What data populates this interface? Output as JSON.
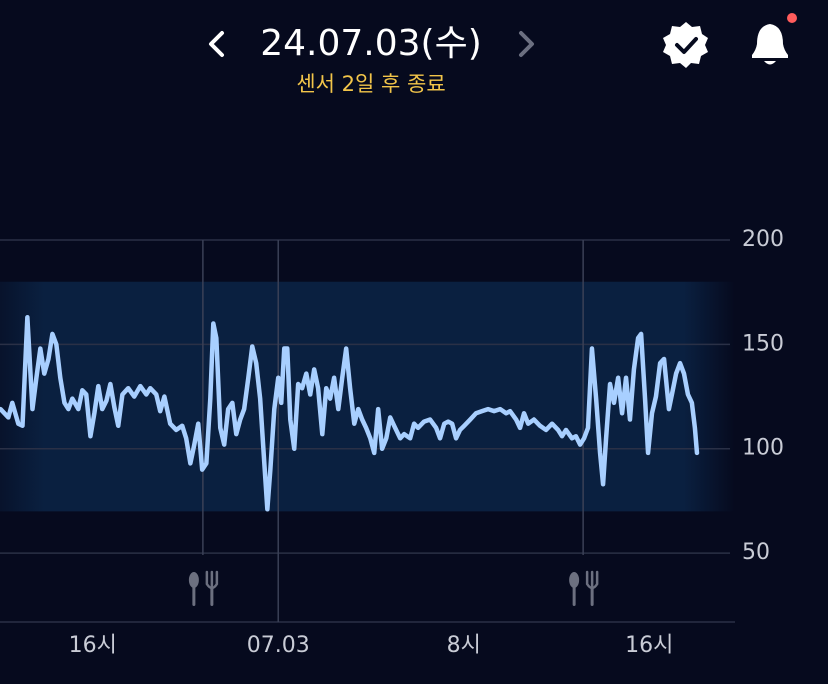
{
  "header": {
    "date": "24.07.03(수)",
    "sensor_note": "센서 2일 후 종료"
  },
  "chart_data": {
    "type": "line",
    "x": [
      -11.98,
      -11.64,
      -11.47,
      -11.21,
      -11.03,
      -10.82,
      -10.6,
      -10.43,
      -10.26,
      -10.09,
      -9.91,
      -9.74,
      -9.57,
      -9.4,
      -9.22,
      -9.05,
      -8.88,
      -8.62,
      -8.45,
      -8.28,
      -8.1,
      -7.93,
      -7.76,
      -7.59,
      -7.41,
      -7.24,
      -7.07,
      -6.9,
      -6.72,
      -6.47,
      -6.21,
      -5.95,
      -5.69,
      -5.52,
      -5.26,
      -5.09,
      -4.91,
      -4.66,
      -4.4,
      -4.14,
      -3.97,
      -3.79,
      -3.62,
      -3.45,
      -3.28,
      -3.1,
      -2.93,
      -2.8,
      -2.67,
      -2.5,
      -2.33,
      -2.16,
      -1.98,
      -1.81,
      -1.64,
      -1.47,
      -1.29,
      -1.12,
      -0.95,
      -0.78,
      -0.6,
      -0.47,
      -0.34,
      -0.17,
      0,
      0.13,
      0.26,
      0.39,
      0.52,
      0.69,
      0.86,
      1.03,
      1.21,
      1.38,
      1.55,
      1.72,
      1.9,
      2.07,
      2.24,
      2.41,
      2.59,
      2.76,
      2.93,
      3.1,
      3.28,
      3.45,
      3.62,
      3.79,
      3.97,
      4.14,
      4.31,
      4.48,
      4.66,
      4.83,
      5,
      5.26,
      5.43,
      5.69,
      5.86,
      6.03,
      6.29,
      6.55,
      6.81,
      6.98,
      7.16,
      7.33,
      7.5,
      7.67,
      7.84,
      8.02,
      8.28,
      8.53,
      8.79,
      9.05,
      9.31,
      9.57,
      9.83,
      10,
      10.26,
      10.43,
      10.6,
      10.78,
      11.03,
      11.29,
      11.55,
      11.81,
      12.07,
      12.24,
      12.41,
      12.67,
      12.84,
      13.02,
      13.19,
      13.36,
      13.53,
      13.71,
      13.88,
      14.01,
      14.14,
      14.31,
      14.48,
      14.66,
      14.83,
      15,
      15.17,
      15.34,
      15.52,
      15.65,
      15.82,
      15.95,
      16.12,
      16.29,
      16.47,
      16.64,
      16.85,
      16.98,
      17.16,
      17.33,
      17.5,
      17.67,
      17.84,
      17.97,
      18.06
    ],
    "series": [
      {
        "color": "#a8cfff",
        "values": [
          119,
          115,
          122,
          112,
          111,
          163,
          119,
          134,
          148,
          136,
          143,
          155,
          150,
          134,
          122,
          119,
          124,
          119,
          128,
          126,
          106,
          117,
          130,
          119,
          123,
          131,
          120,
          111,
          126,
          129,
          125,
          130,
          126,
          129,
          126,
          118,
          125,
          112,
          109,
          111,
          105,
          93,
          102,
          112,
          90,
          93,
          124,
          160,
          153,
          110,
          102,
          119,
          122,
          107,
          114,
          119,
          134,
          149,
          141,
          124,
          93,
          71,
          90,
          119,
          134,
          122,
          148,
          148,
          114,
          100,
          131,
          129,
          136,
          126,
          138,
          129,
          107,
          129,
          124,
          134,
          119,
          134,
          148,
          129,
          112,
          119,
          114,
          110,
          105,
          98,
          119,
          100,
          105,
          115,
          111,
          105,
          107,
          105,
          112,
          110,
          113,
          114,
          110,
          105,
          112,
          113,
          112,
          105,
          109,
          111,
          114,
          117,
          118,
          119,
          118,
          119,
          117,
          118,
          114,
          110,
          117,
          112,
          114,
          111,
          109,
          112,
          109,
          106,
          109,
          105,
          106,
          102,
          105,
          110,
          148,
          124,
          98,
          83,
          105,
          131,
          122,
          134,
          117,
          134,
          114,
          138,
          153,
          155,
          124,
          98,
          117,
          125,
          141,
          143,
          119,
          126,
          136,
          141,
          136,
          126,
          122,
          110,
          98
        ]
      }
    ],
    "target_range": [
      70,
      180
    ],
    "meals": [
      -3.25,
      13.15
    ],
    "xlim": [
      -12,
      19.7
    ],
    "xticks": [
      {
        "value": -8,
        "label": "16시"
      },
      {
        "value": 0,
        "label": "07.03"
      },
      {
        "value": 8,
        "label": "8시"
      },
      {
        "value": 16,
        "label": "16시"
      }
    ],
    "ylim": [
      17,
      200
    ],
    "yticks": [
      50,
      100,
      150,
      200
    ],
    "grid": true
  }
}
